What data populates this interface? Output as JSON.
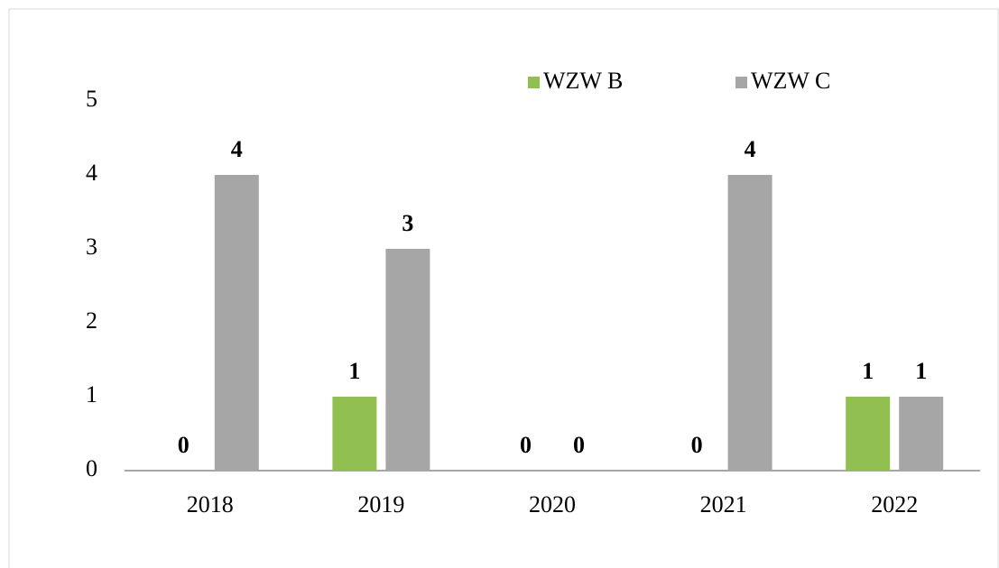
{
  "chart_data": {
    "type": "bar",
    "categories": [
      "2018",
      "2019",
      "2020",
      "2021",
      "2022"
    ],
    "series": [
      {
        "name": "WZW B",
        "color": "#92c050",
        "values": [
          0,
          1,
          0,
          0,
          1
        ]
      },
      {
        "name": "WZW C",
        "color": "#a6a6a6",
        "values": [
          4,
          3,
          0,
          4,
          1
        ]
      }
    ],
    "ylim": [
      0,
      5
    ],
    "yticks": [
      0,
      1,
      2,
      3,
      4,
      5
    ],
    "grid": false,
    "legend": "top",
    "data_labels": true
  }
}
